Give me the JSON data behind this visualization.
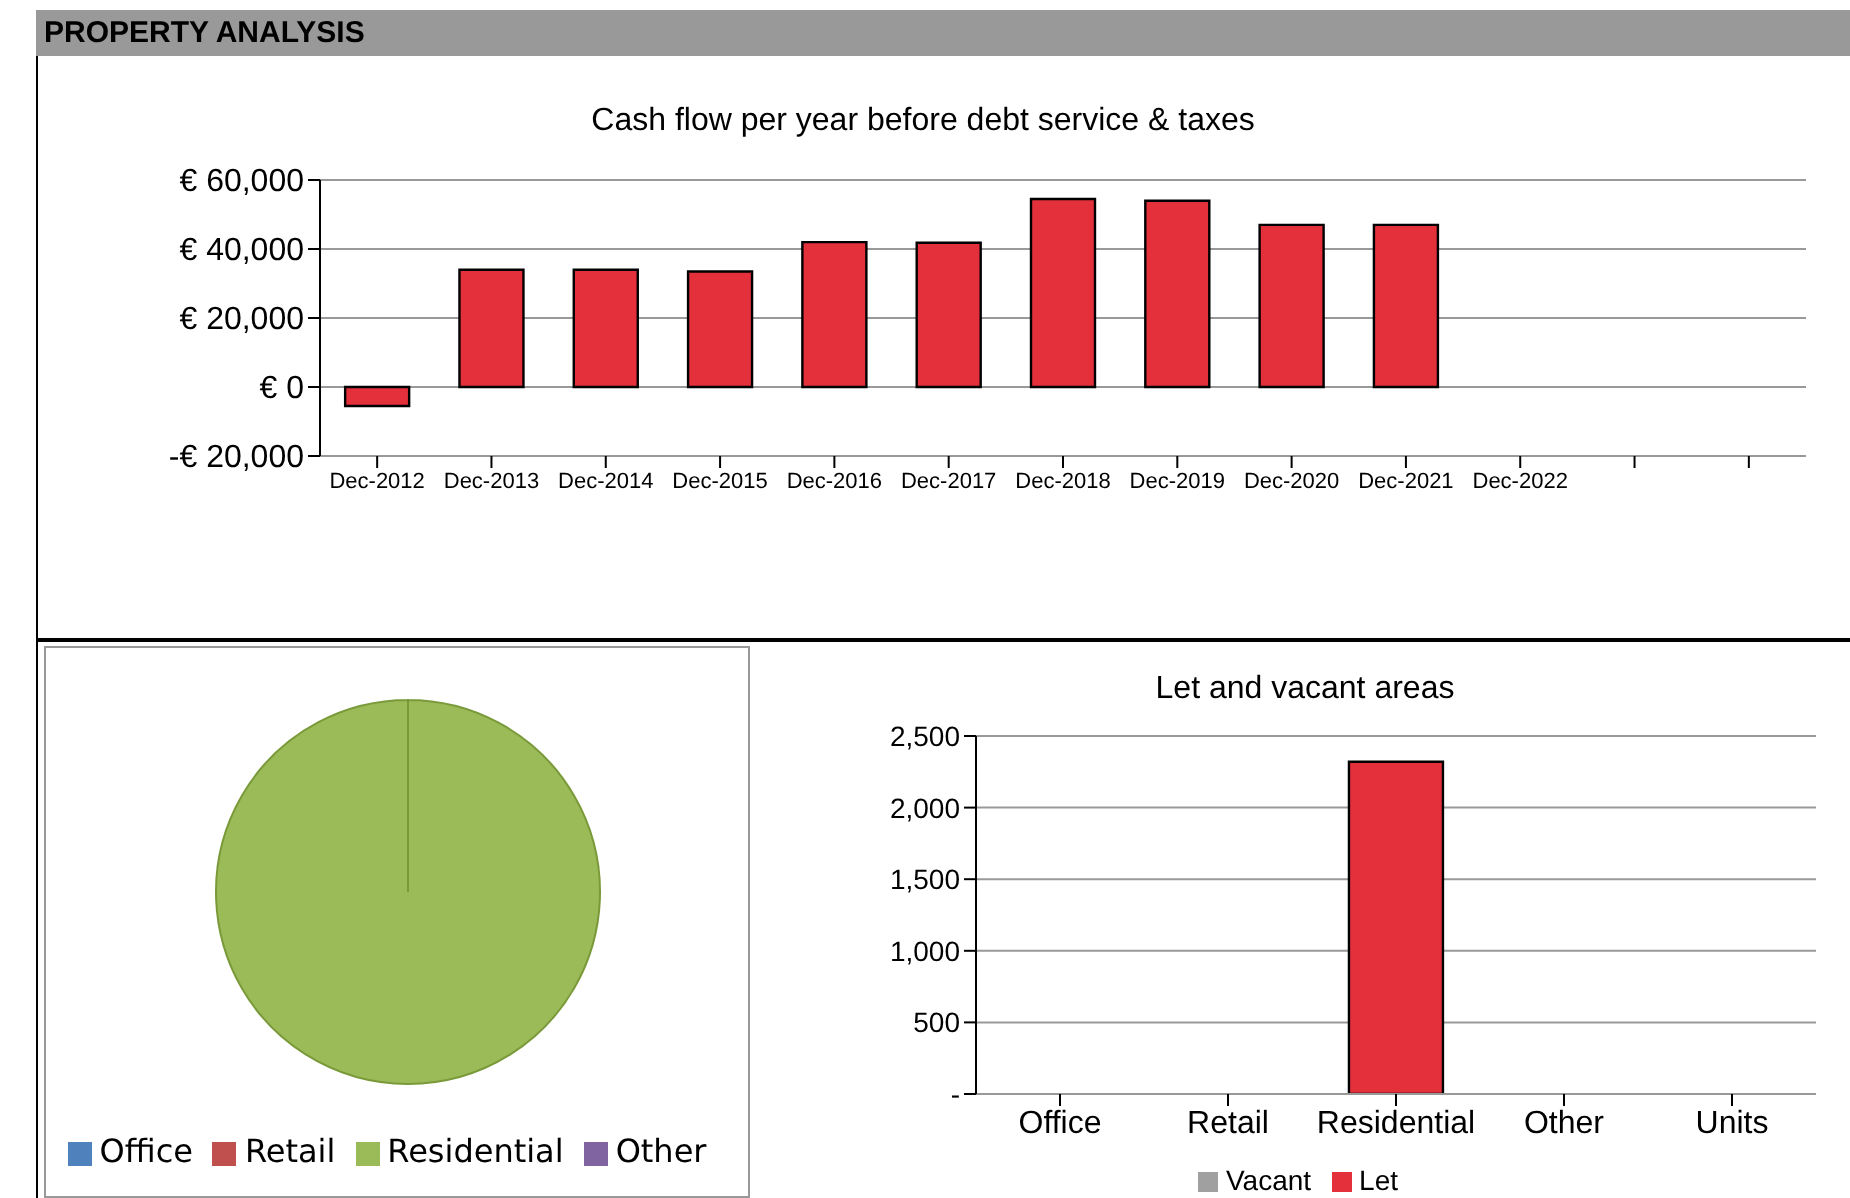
{
  "chart_data": [
    {
      "type": "bar",
      "title": "Cash flow per year before debt service & taxes",
      "annotations": [
        "PROPERTY ANALYSIS"
      ],
      "categories": [
        "Dec-2012",
        "Dec-2013",
        "Dec-2014",
        "Dec-2015",
        "Dec-2016",
        "Dec-2017",
        "Dec-2018",
        "Dec-2019",
        "Dec-2020",
        "Dec-2021",
        "Dec-2022",
        null,
        null
      ],
      "values": [
        -5500,
        34000,
        34000,
        33500,
        42000,
        41800,
        54500,
        54000,
        47000,
        47000,
        null,
        null,
        null
      ],
      "color": "#e3303b",
      "ylim": [
        -20000,
        60000
      ],
      "yticks": [
        {
          "value": -20000,
          "label": "-€ 20,000"
        },
        {
          "value": 0,
          "label": "€ 0"
        },
        {
          "value": 20000,
          "label": "€ 20,000"
        },
        {
          "value": 40000,
          "label": "€ 40,000"
        },
        {
          "value": 60000,
          "label": "€ 60,000"
        }
      ],
      "grid": "y"
    },
    {
      "type": "pie",
      "categories": [
        "Office",
        "Retail",
        "Residential",
        "Other"
      ],
      "values": [
        0,
        0,
        100,
        0
      ],
      "colors": [
        "#4f81bd",
        "#c0504d",
        "#9bbb59",
        "#8064a2"
      ],
      "legend": "bottom"
    },
    {
      "type": "bar",
      "title": "Let and vacant areas",
      "categories": [
        "Office",
        "Retail",
        "Residential",
        "Other",
        "Units"
      ],
      "stacked": true,
      "series": [
        {
          "name": "Vacant",
          "color": "#a0a0a0",
          "values": [
            0,
            0,
            0,
            0,
            0
          ]
        },
        {
          "name": "Let",
          "color": "#e3303b",
          "values": [
            0,
            0,
            2320,
            0,
            0
          ]
        }
      ],
      "ylim": [
        0,
        2500
      ],
      "yticks": [
        {
          "value": 0,
          "label": "-"
        },
        {
          "value": 500,
          "label": "500"
        },
        {
          "value": 1000,
          "label": "1,000"
        },
        {
          "value": 1500,
          "label": "1,500"
        },
        {
          "value": 2000,
          "label": "2,000"
        },
        {
          "value": 2500,
          "label": "2,500"
        }
      ],
      "grid": "y",
      "legend": "bottom"
    }
  ]
}
